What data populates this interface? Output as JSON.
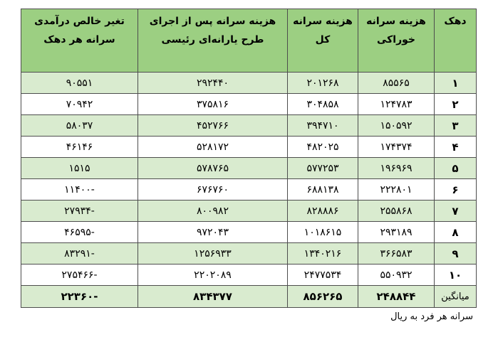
{
  "header": {
    "col_dahak": "دهک",
    "col_food_1": "هزینه سرانه",
    "col_food_2": "خوراکی",
    "col_total_1": "هزینه سرانه",
    "col_total_2": "کل",
    "col_after_1": "هزینه سرانه پس از اجرای",
    "col_after_2": "طرح یارانه‌ای رئیسی",
    "col_change_1": "تغیر خالص درآمدی",
    "col_change_2": "سرانه هر دهک"
  },
  "rows": [
    {
      "dahak": "۱",
      "food": "۸۵۵۶۵",
      "total": "۲۰۱۲۶۸",
      "after": "۲۹۲۴۴۰",
      "change": "۹۰۵۵۱"
    },
    {
      "dahak": "۲",
      "food": "۱۲۴۷۸۳",
      "total": "۳۰۴۸۵۸",
      "after": "۳۷۵۸۱۶",
      "change": "۷۰۹۴۲"
    },
    {
      "dahak": "۳",
      "food": "۱۵۰۵۹۲",
      "total": "۳۹۴۷۱۰",
      "after": "۴۵۲۷۶۶",
      "change": "۵۸۰۳۷"
    },
    {
      "dahak": "۴",
      "food": "۱۷۴۳۷۴",
      "total": "۴۸۲۰۲۵",
      "after": "۵۲۸۱۷۲",
      "change": "۴۶۱۴۶"
    },
    {
      "dahak": "۵",
      "food": "۱۹۶۹۶۹",
      "total": "۵۷۷۲۵۳",
      "after": "۵۷۸۷۶۵",
      "change": "۱۵۱۵"
    },
    {
      "dahak": "۶",
      "food": "۲۲۲۸۰۱",
      "total": "۶۸۸۱۳۸",
      "after": "۶۷۶۷۶۰",
      "change": "-۱۱۴۰۰"
    },
    {
      "dahak": "۷",
      "food": "۲۵۵۸۶۸",
      "total": "۸۲۸۸۸۶",
      "after": "۸۰۰۹۸۲",
      "change": "-۲۷۹۳۴"
    },
    {
      "dahak": "۸",
      "food": "۲۹۳۱۸۹",
      "total": "۱۰۱۸۶۱۵",
      "after": "۹۷۲۰۴۳",
      "change": "-۴۶۵۹۵"
    },
    {
      "dahak": "۹",
      "food": "۳۶۶۵۸۳",
      "total": "۱۳۴۰۲۱۶",
      "after": "۱۲۵۶۹۳۳",
      "change": "-۸۳۲۹۱"
    },
    {
      "dahak": "۱۰",
      "food": "۵۵۰۹۳۲",
      "total": "۲۴۷۷۵۳۴",
      "after": "۲۲۰۲۰۸۹",
      "change": "-۲۷۵۴۶۶"
    }
  ],
  "footer": {
    "label": "میانگین",
    "food": "۲۴۸۸۴۴",
    "total": "۸۵۶۲۶۵",
    "after": "۸۳۴۳۷۷",
    "change": "-۲۲۳۶۰"
  },
  "note": "سرانه هر فرد به ریال",
  "colors": {
    "header_bg": "#9ccf82",
    "band_bg": "#d9ebcf",
    "border": "#4d4d4d"
  }
}
